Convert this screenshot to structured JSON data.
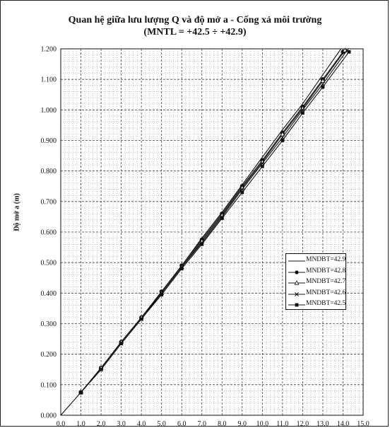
{
  "chart_data": {
    "type": "line",
    "title": "Quan hệ giữa lưu lượng Q và độ mở a - Cống xả môi trường",
    "subtitle": "(MNTL = +42.5 ÷ +42.9)",
    "xlabel": "",
    "ylabel": "Độ mở a (m)",
    "xlim": [
      0,
      15
    ],
    "ylim": [
      0,
      1.2
    ],
    "x_ticks": [
      "0.0",
      "1.0",
      "2.0",
      "3.0",
      "4.0",
      "5.0",
      "6.0",
      "7.0",
      "8.0",
      "9.0",
      "10.0",
      "11.0",
      "12.0",
      "13.0",
      "14.0",
      "15.0"
    ],
    "y_ticks": [
      "0.000",
      "0.100",
      "0.200",
      "0.300",
      "0.400",
      "0.500",
      "0.600",
      "0.700",
      "0.800",
      "0.900",
      "1.000",
      "1.100",
      "1.200"
    ],
    "grid": true,
    "legend_position": "right-middle",
    "series": [
      {
        "name": "MNDBT=42.9",
        "marker": "none",
        "points": [
          [
            0,
            0
          ],
          [
            1.0,
            0.075
          ],
          [
            2.0,
            0.155
          ],
          [
            3.0,
            0.24
          ],
          [
            4.0,
            0.32
          ],
          [
            5.0,
            0.405
          ],
          [
            6.0,
            0.49
          ],
          [
            7.0,
            0.58
          ],
          [
            8.0,
            0.665
          ],
          [
            9.0,
            0.755
          ],
          [
            10.0,
            0.845
          ],
          [
            11.0,
            0.935
          ],
          [
            12.0,
            1.02
          ],
          [
            13.0,
            1.115
          ],
          [
            13.9,
            1.2
          ]
        ]
      },
      {
        "name": "MNDBT=42.8",
        "marker": "circle",
        "points": [
          [
            1.0,
            0.075
          ],
          [
            2.0,
            0.155
          ],
          [
            3.0,
            0.24
          ],
          [
            4.0,
            0.32
          ],
          [
            5.0,
            0.405
          ],
          [
            6.0,
            0.49
          ],
          [
            7.0,
            0.575
          ],
          [
            8.0,
            0.66
          ],
          [
            9.0,
            0.75
          ],
          [
            10.0,
            0.835
          ],
          [
            11.0,
            0.925
          ],
          [
            12.0,
            1.01
          ],
          [
            13.0,
            1.1
          ],
          [
            14.0,
            1.19
          ]
        ]
      },
      {
        "name": "MNDBT=42.7",
        "marker": "triangle",
        "points": [
          [
            1.0,
            0.075
          ],
          [
            2.0,
            0.155
          ],
          [
            3.0,
            0.24
          ],
          [
            4.0,
            0.32
          ],
          [
            5.0,
            0.4
          ],
          [
            6.0,
            0.485
          ],
          [
            7.0,
            0.57
          ],
          [
            8.0,
            0.655
          ],
          [
            9.0,
            0.745
          ],
          [
            10.0,
            0.83
          ],
          [
            11.0,
            0.92
          ],
          [
            12.0,
            1.005
          ],
          [
            13.0,
            1.095
          ],
          [
            14.1,
            1.195
          ]
        ]
      },
      {
        "name": "MNDBT=42.6",
        "marker": "x",
        "points": [
          [
            1.0,
            0.075
          ],
          [
            2.0,
            0.15
          ],
          [
            3.0,
            0.235
          ],
          [
            4.0,
            0.315
          ],
          [
            5.0,
            0.4
          ],
          [
            6.0,
            0.485
          ],
          [
            7.0,
            0.565
          ],
          [
            8.0,
            0.65
          ],
          [
            9.0,
            0.74
          ],
          [
            10.0,
            0.825
          ],
          [
            11.0,
            0.91
          ],
          [
            12.0,
            1.0
          ],
          [
            13.0,
            1.085
          ],
          [
            14.2,
            1.195
          ]
        ]
      },
      {
        "name": "MNDBT=42.5",
        "marker": "square",
        "points": [
          [
            1.0,
            0.075
          ],
          [
            2.0,
            0.15
          ],
          [
            3.0,
            0.235
          ],
          [
            4.0,
            0.315
          ],
          [
            5.0,
            0.395
          ],
          [
            6.0,
            0.48
          ],
          [
            7.0,
            0.56
          ],
          [
            8.0,
            0.645
          ],
          [
            9.0,
            0.73
          ],
          [
            10.0,
            0.815
          ],
          [
            11.0,
            0.9
          ],
          [
            12.0,
            0.99
          ],
          [
            13.0,
            1.075
          ],
          [
            14.3,
            1.19
          ]
        ]
      }
    ]
  }
}
